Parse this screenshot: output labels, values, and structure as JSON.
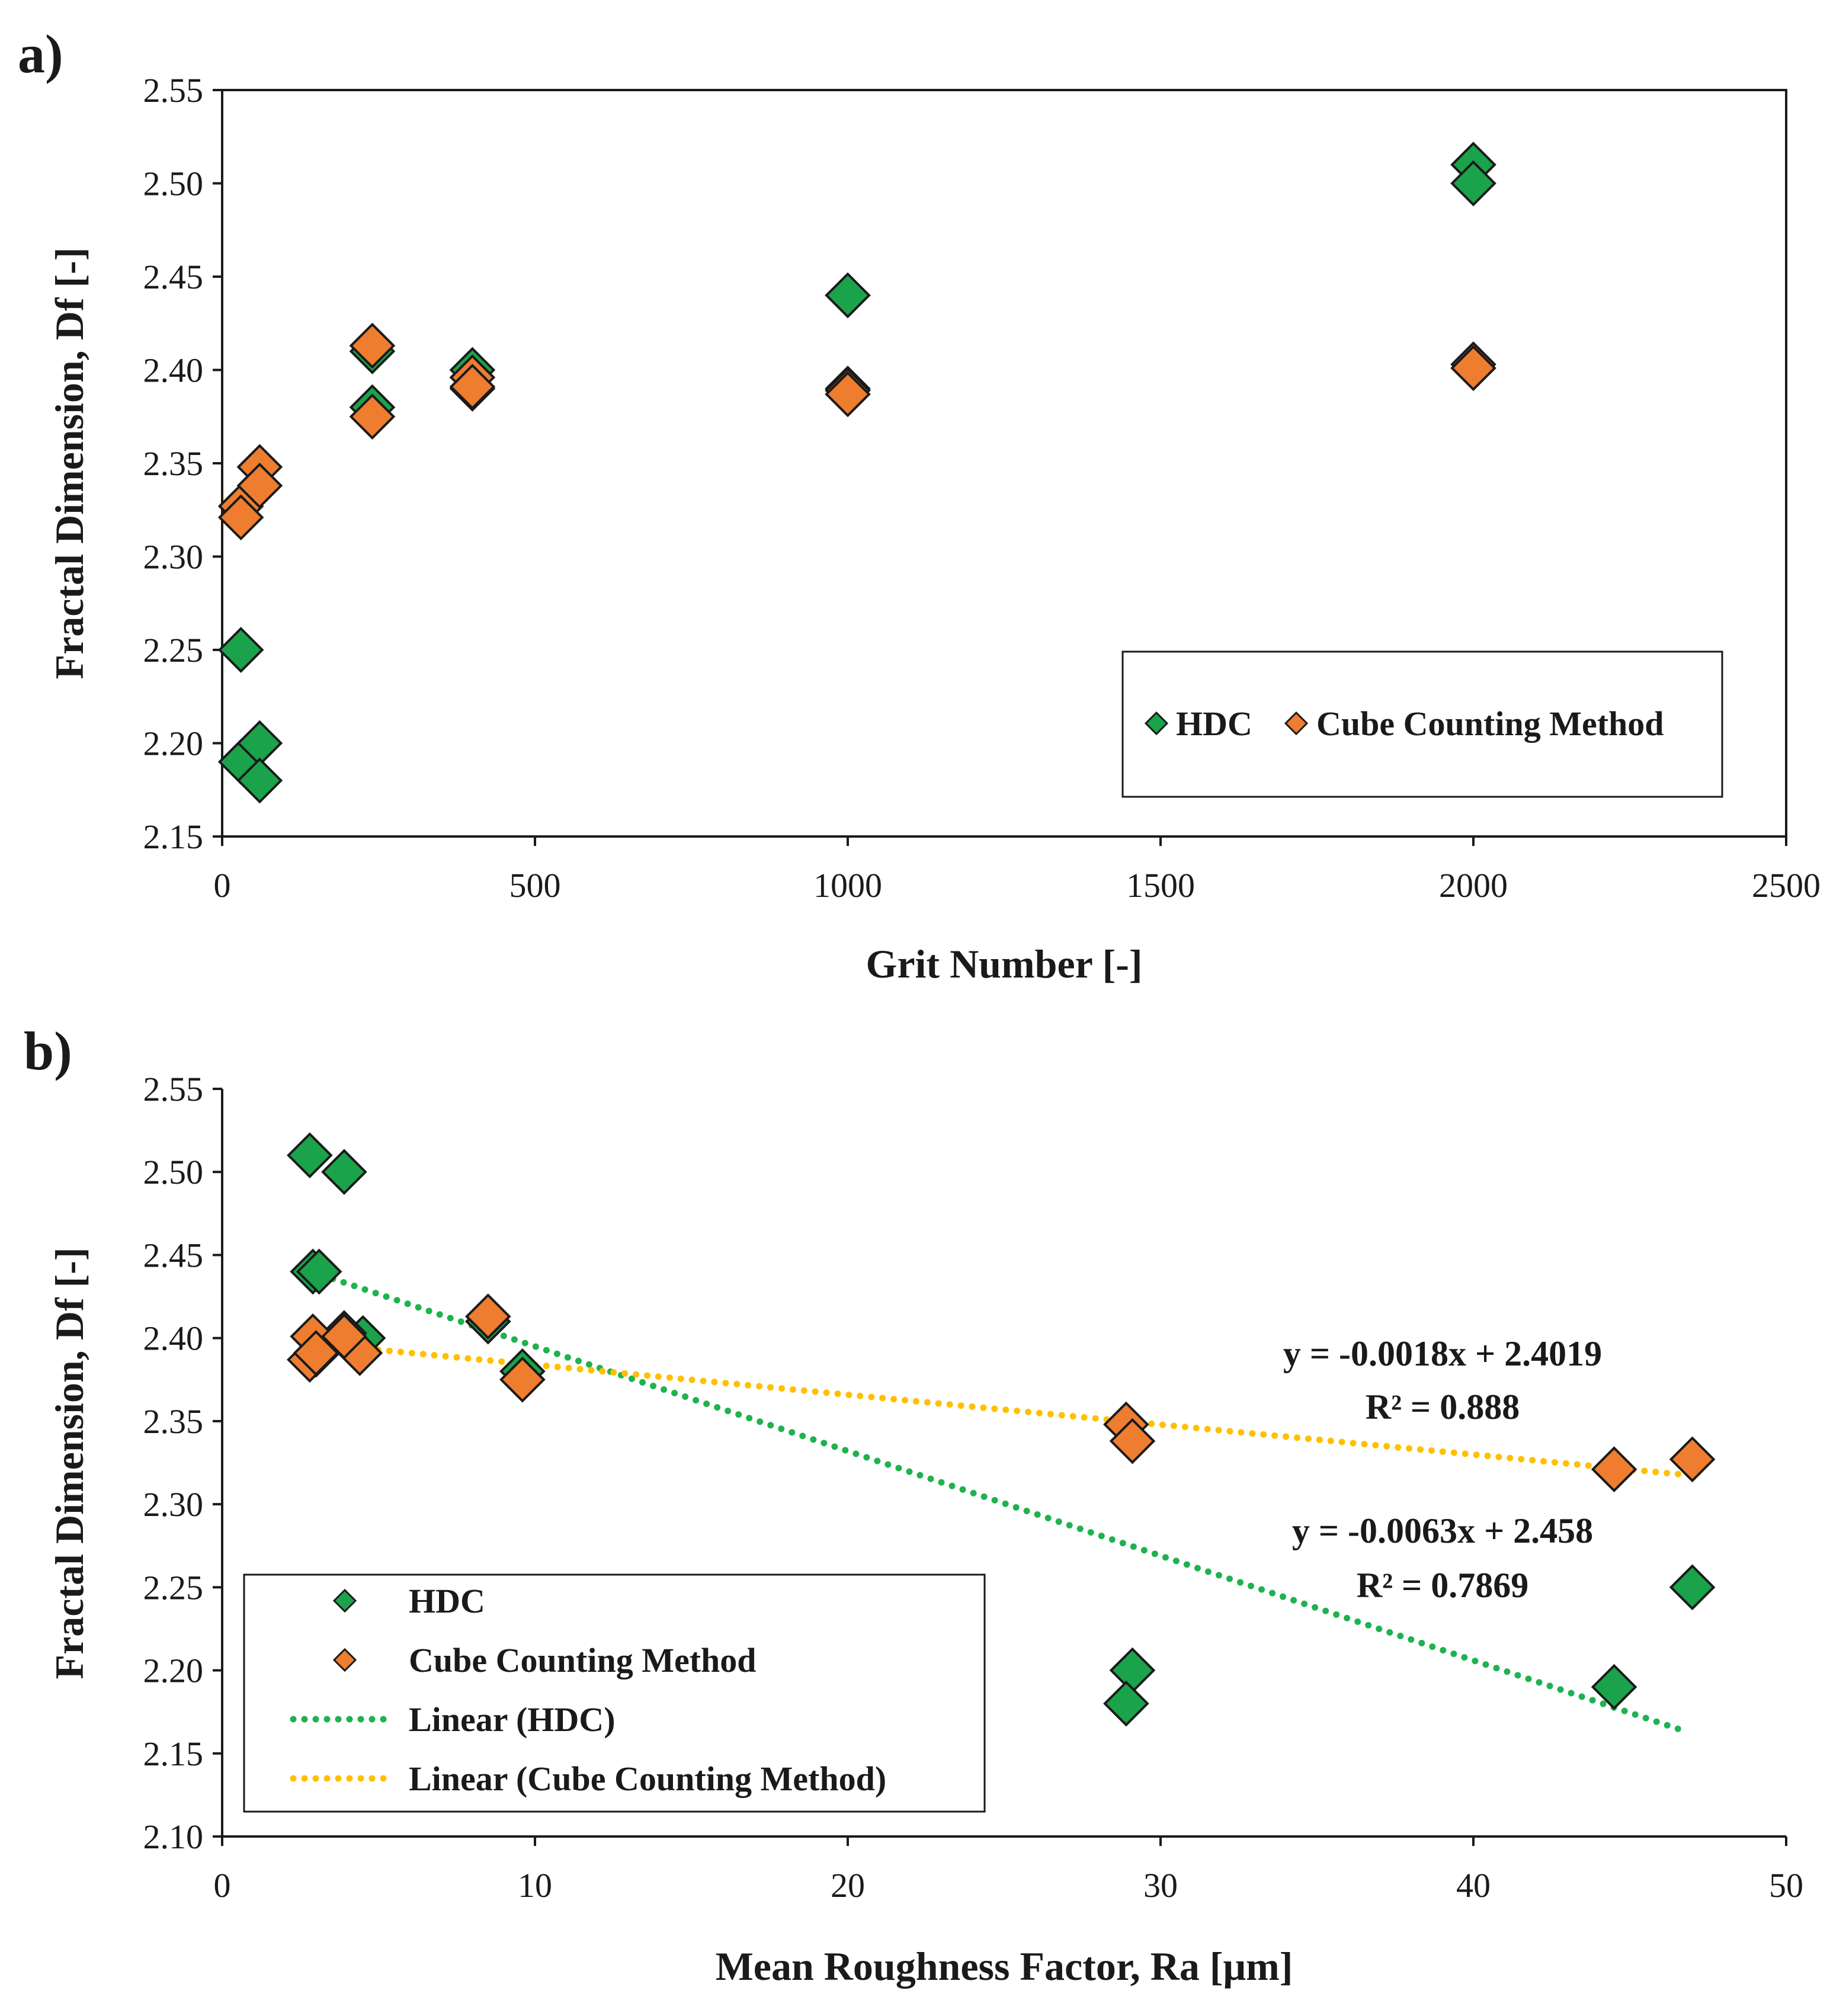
{
  "colors": {
    "hdc": "#1aa34a",
    "ccm": "#ee7d2f",
    "hdc_trend": "#1fb24f",
    "ccm_trend": "#ffc000",
    "stroke": "#1a1a1a"
  },
  "chart_data": [
    {
      "panel_label": "a)",
      "type": "scatter",
      "xlabel": "Grit Number [-]",
      "ylabel": "Fractal Dimension, Df [-]",
      "xlim": [
        0,
        2500
      ],
      "ylim": [
        2.15,
        2.55
      ],
      "xticks": [
        0,
        500,
        1000,
        1500,
        2000,
        2500
      ],
      "yticks": [
        2.15,
        2.2,
        2.25,
        2.3,
        2.35,
        2.4,
        2.45,
        2.5,
        2.55
      ],
      "xtick_labels": [
        "0",
        "500",
        "1000",
        "1500",
        "2000",
        "2500"
      ],
      "ytick_labels": [
        "2.15",
        "2.20",
        "2.25",
        "2.30",
        "2.35",
        "2.40",
        "2.45",
        "2.50",
        "2.55"
      ],
      "grid": false,
      "legend": {
        "placement": "bottom-right",
        "entries": [
          "HDC",
          "Cube Counting Method"
        ]
      },
      "series": [
        {
          "name": "HDC",
          "x": [
            30,
            30,
            60,
            60,
            240,
            240,
            400,
            400,
            1000,
            1000,
            2000,
            2000
          ],
          "y": [
            2.25,
            2.19,
            2.2,
            2.18,
            2.41,
            2.38,
            2.4,
            2.39,
            2.44,
            2.39,
            2.51,
            2.5
          ]
        },
        {
          "name": "Cube Counting Method",
          "x": [
            30,
            30,
            60,
            60,
            240,
            240,
            400,
            400,
            1000,
            1000,
            2000,
            2000
          ],
          "y": [
            2.327,
            2.321,
            2.348,
            2.338,
            2.413,
            2.375,
            2.396,
            2.391,
            2.389,
            2.387,
            2.403,
            2.401
          ]
        }
      ]
    },
    {
      "panel_label": "b)",
      "type": "scatter",
      "xlabel": "Mean Roughness Factor, Ra [μm]",
      "ylabel": "Fractal Dimension, Df [-]",
      "xlim": [
        0,
        50
      ],
      "ylim": [
        2.1,
        2.55
      ],
      "xticks": [
        0,
        10,
        20,
        30,
        40,
        50
      ],
      "yticks": [
        2.1,
        2.15,
        2.2,
        2.25,
        2.3,
        2.35,
        2.4,
        2.45,
        2.5,
        2.55
      ],
      "xtick_labels": [
        "0",
        "10",
        "20",
        "30",
        "40",
        "50"
      ],
      "ytick_labels": [
        "2.10",
        "2.15",
        "2.20",
        "2.25",
        "2.30",
        "2.35",
        "2.40",
        "2.45",
        "2.50",
        "2.55"
      ],
      "grid": false,
      "legend": {
        "placement": "bottom-left",
        "entries": [
          "HDC",
          "Cube Counting Method",
          "Linear (HDC)",
          "Linear (Cube Counting Method)"
        ]
      },
      "series": [
        {
          "name": "HDC",
          "x": [
            47.0,
            44.5,
            29.1,
            28.9,
            8.5,
            9.6,
            4.5,
            3.0,
            2.9,
            3.1,
            2.8,
            3.9
          ],
          "y": [
            2.25,
            2.19,
            2.2,
            2.18,
            2.41,
            2.38,
            2.4,
            2.39,
            2.44,
            2.44,
            2.51,
            2.5
          ]
        },
        {
          "name": "Cube Counting Method",
          "x": [
            47.0,
            44.5,
            28.9,
            29.1,
            8.5,
            9.6,
            3.9,
            4.4,
            2.9,
            2.8,
            3.0,
            3.9
          ],
          "y": [
            2.327,
            2.321,
            2.348,
            2.338,
            2.413,
            2.375,
            2.403,
            2.391,
            2.401,
            2.387,
            2.391,
            2.401
          ]
        }
      ],
      "trendlines": [
        {
          "name": "Linear (HDC)",
          "slope": -0.0063,
          "intercept": 2.458,
          "x_range": [
            3.2,
            46.8
          ],
          "equation": "y = -0.0063x + 2.458",
          "r2": "R² = 0.7869"
        },
        {
          "name": "Linear (Cube Counting Method)",
          "slope": -0.0018,
          "intercept": 2.4019,
          "x_range": [
            3.2,
            46.8
          ],
          "equation": "y = -0.0018x + 2.4019",
          "r2": "R² = 0.888"
        }
      ]
    }
  ]
}
